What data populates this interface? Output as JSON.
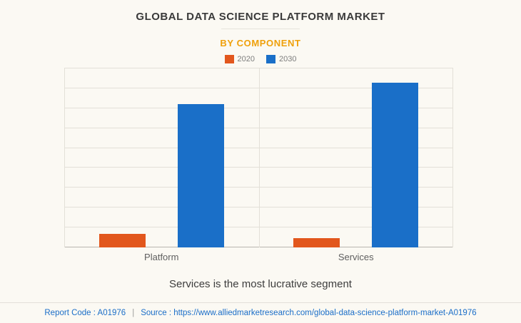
{
  "header": {
    "title": "GLOBAL DATA SCIENCE PLATFORM MARKET",
    "subtitle": "BY COMPONENT"
  },
  "chart_data": {
    "type": "bar",
    "categories": [
      "Platform",
      "Services"
    ],
    "series": [
      {
        "name": "2020",
        "color": "#e2571d",
        "values": [
          7.5,
          5
        ]
      },
      {
        "name": "2030",
        "color": "#1a6fc8",
        "values": [
          80,
          92
        ]
      }
    ],
    "title": "GLOBAL DATA SCIENCE PLATFORM MARKET",
    "subtitle": "BY COMPONENT",
    "xlabel": "",
    "ylabel": "",
    "ylim": [
      0,
      100
    ],
    "grid": true,
    "gridline_rows": 9,
    "legend_position": "top",
    "value_labels": false
  },
  "caption": "Services is the most lucrative segment",
  "footer": {
    "report_code": "Report Code : A01976",
    "separator": "|",
    "source": "Source : https://www.alliedmarketresearch.com/global-data-science-platform-market-A01976"
  },
  "colors": {
    "background": "#fbf9f3",
    "subtitle": "#efa00b",
    "bar_2020": "#e2571d",
    "bar_2030": "#1a6fc8",
    "footer_text": "#1b6ec8",
    "separator_text": "#9a9a9a",
    "gridline": "#e3e0d8",
    "axis": "#b9b6af",
    "text_dark": "#3a3a3a",
    "legend_text": "#7d7d7d"
  }
}
